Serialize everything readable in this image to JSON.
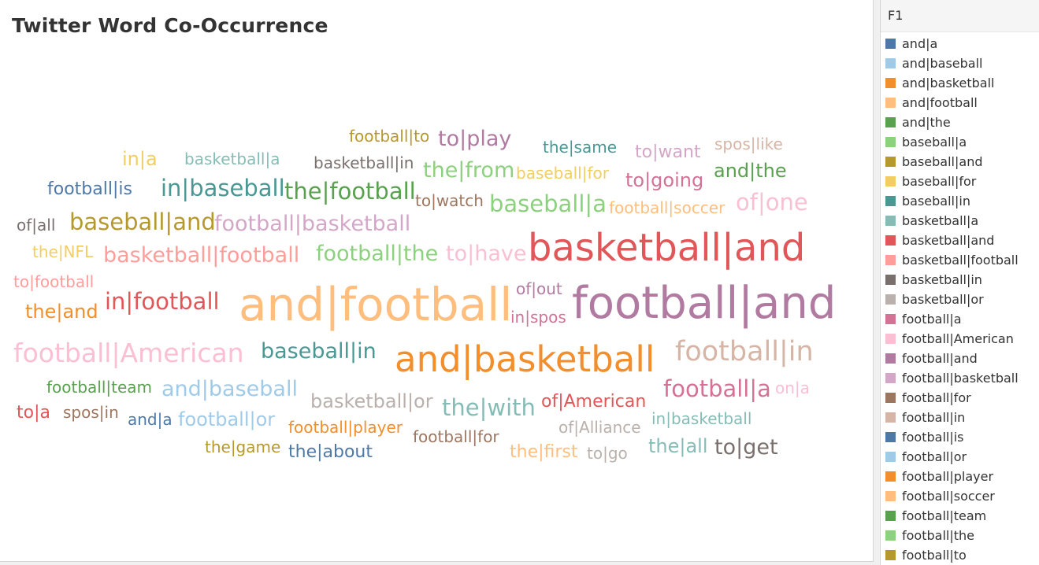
{
  "title": "Twitter Word Co-Occurrence",
  "legend": {
    "title": "F1",
    "items": [
      {
        "label": "and|a",
        "color": "#4e79a7"
      },
      {
        "label": "and|baseball",
        "color": "#a0cbe8"
      },
      {
        "label": "and|basketball",
        "color": "#f28e2b"
      },
      {
        "label": "and|football",
        "color": "#ffbe7d"
      },
      {
        "label": "and|the",
        "color": "#59a14f"
      },
      {
        "label": "baseball|a",
        "color": "#8cd17d"
      },
      {
        "label": "baseball|and",
        "color": "#b6992d"
      },
      {
        "label": "baseball|for",
        "color": "#f1ce63"
      },
      {
        "label": "baseball|in",
        "color": "#499894"
      },
      {
        "label": "basketball|a",
        "color": "#86bcb6"
      },
      {
        "label": "basketball|and",
        "color": "#e15759"
      },
      {
        "label": "basketball|football",
        "color": "#ff9d9a"
      },
      {
        "label": "basketball|in",
        "color": "#79706e"
      },
      {
        "label": "basketball|or",
        "color": "#bab0ac"
      },
      {
        "label": "football|a",
        "color": "#d37295"
      },
      {
        "label": "football|American",
        "color": "#fabfd2"
      },
      {
        "label": "football|and",
        "color": "#b07aa1"
      },
      {
        "label": "football|basketball",
        "color": "#d4a6c8"
      },
      {
        "label": "football|for",
        "color": "#9d7660"
      },
      {
        "label": "football|in",
        "color": "#d7b5a6"
      },
      {
        "label": "football|is",
        "color": "#4e79a7"
      },
      {
        "label": "football|or",
        "color": "#a0cbe8"
      },
      {
        "label": "football|player",
        "color": "#f28e2b"
      },
      {
        "label": "football|soccer",
        "color": "#ffbe7d"
      },
      {
        "label": "football|team",
        "color": "#59a14f"
      },
      {
        "label": "football|the",
        "color": "#8cd17d"
      },
      {
        "label": "football|to",
        "color": "#b6992d"
      }
    ]
  },
  "chart_data": {
    "type": "word_cloud",
    "words": [
      {
        "text": "football|to",
        "weight": 2,
        "color": "#b6992d"
      },
      {
        "text": "to|play",
        "weight": 4,
        "color": "#b07aa1"
      },
      {
        "text": "the|same",
        "weight": 2,
        "color": "#499894"
      },
      {
        "text": "to|want",
        "weight": 2,
        "color": "#d4a6c8"
      },
      {
        "text": "spos|like",
        "weight": 2,
        "color": "#d7b5a6"
      },
      {
        "text": "in|a",
        "weight": 2,
        "color": "#f1ce63"
      },
      {
        "text": "basketball|a",
        "weight": 2,
        "color": "#86bcb6"
      },
      {
        "text": "basketball|in",
        "weight": 2,
        "color": "#79706e"
      },
      {
        "text": "the|from",
        "weight": 4,
        "color": "#8cd17d"
      },
      {
        "text": "baseball|for",
        "weight": 2,
        "color": "#f1ce63"
      },
      {
        "text": "to|going",
        "weight": 3,
        "color": "#d37295"
      },
      {
        "text": "and|the",
        "weight": 3,
        "color": "#59a14f"
      },
      {
        "text": "football|is",
        "weight": 3,
        "color": "#4e79a7"
      },
      {
        "text": "in|baseball",
        "weight": 5,
        "color": "#499894"
      },
      {
        "text": "the|football",
        "weight": 5,
        "color": "#59a14f"
      },
      {
        "text": "to|watch",
        "weight": 2,
        "color": "#9d7660"
      },
      {
        "text": "baseball|a",
        "weight": 5,
        "color": "#8cd17d"
      },
      {
        "text": "football|soccer",
        "weight": 2,
        "color": "#ffbe7d"
      },
      {
        "text": "of|one",
        "weight": 5,
        "color": "#fabfd2"
      },
      {
        "text": "of|all",
        "weight": 2,
        "color": "#79706e"
      },
      {
        "text": "baseball|and",
        "weight": 5,
        "color": "#b6992d"
      },
      {
        "text": "football|basketball",
        "weight": 5,
        "color": "#d4a6c8"
      },
      {
        "text": "the|NFL",
        "weight": 2,
        "color": "#f1ce63"
      },
      {
        "text": "basketball|football",
        "weight": 5,
        "color": "#ff9d9a"
      },
      {
        "text": "football|the",
        "weight": 5,
        "color": "#8cd17d"
      },
      {
        "text": "to|have",
        "weight": 4,
        "color": "#fabfd2"
      },
      {
        "text": "basketball|and",
        "weight": 9,
        "color": "#e15759"
      },
      {
        "text": "to|football",
        "weight": 2,
        "color": "#ff9d9a"
      },
      {
        "text": "of|out",
        "weight": 2,
        "color": "#b07aa1"
      },
      {
        "text": "the|and",
        "weight": 3,
        "color": "#f28e2b"
      },
      {
        "text": "in|football",
        "weight": 5,
        "color": "#e15759"
      },
      {
        "text": "and|football",
        "weight": 10,
        "color": "#ffbe7d"
      },
      {
        "text": "in|spos",
        "weight": 2,
        "color": "#d37295"
      },
      {
        "text": "football|and",
        "weight": 10,
        "color": "#b07aa1"
      },
      {
        "text": "football|American",
        "weight": 5,
        "color": "#fabfd2"
      },
      {
        "text": "baseball|in",
        "weight": 5,
        "color": "#499894"
      },
      {
        "text": "and|basketball",
        "weight": 9,
        "color": "#f28e2b"
      },
      {
        "text": "football|in",
        "weight": 6,
        "color": "#d7b5a6"
      },
      {
        "text": "football|team",
        "weight": 2,
        "color": "#59a14f"
      },
      {
        "text": "and|baseball",
        "weight": 5,
        "color": "#a0cbe8"
      },
      {
        "text": "basketball|or",
        "weight": 4,
        "color": "#bab0ac"
      },
      {
        "text": "of|American",
        "weight": 3,
        "color": "#e15759"
      },
      {
        "text": "football|a",
        "weight": 5,
        "color": "#d37295"
      },
      {
        "text": "on|a",
        "weight": 2,
        "color": "#fabfd2"
      },
      {
        "text": "to|a",
        "weight": 2,
        "color": "#e15759"
      },
      {
        "text": "spos|in",
        "weight": 2,
        "color": "#9d7660"
      },
      {
        "text": "and|a",
        "weight": 2,
        "color": "#4e79a7"
      },
      {
        "text": "football|or",
        "weight": 4,
        "color": "#a0cbe8"
      },
      {
        "text": "the|with",
        "weight": 5,
        "color": "#86bcb6"
      },
      {
        "text": "in|basketball",
        "weight": 2,
        "color": "#86bcb6"
      },
      {
        "text": "football|player",
        "weight": 2,
        "color": "#f28e2b"
      },
      {
        "text": "football|for",
        "weight": 2,
        "color": "#9d7660"
      },
      {
        "text": "of|Alliance",
        "weight": 2,
        "color": "#bab0ac"
      },
      {
        "text": "the|game",
        "weight": 2,
        "color": "#b6992d"
      },
      {
        "text": "the|about",
        "weight": 3,
        "color": "#4e79a7"
      },
      {
        "text": "the|first",
        "weight": 3,
        "color": "#ffbe7d"
      },
      {
        "text": "to|go",
        "weight": 3,
        "color": "#bab0ac"
      },
      {
        "text": "the|all",
        "weight": 4,
        "color": "#86bcb6"
      },
      {
        "text": "to|get",
        "weight": 5,
        "color": "#79706e"
      }
    ]
  }
}
